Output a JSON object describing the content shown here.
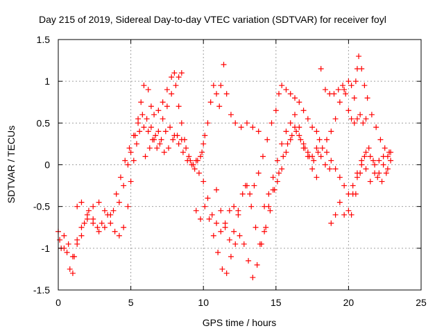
{
  "chart_data": {
    "type": "scatter",
    "title": "Day 215 of 2019, Sidereal Day-to-day VTEC variation (SDTVAR) for receiver foyl",
    "xlabel": "GPS time / hours",
    "ylabel": "SDTVAR / TECUs",
    "xlim": [
      0,
      25
    ],
    "ylim": [
      -1.5,
      1.5
    ],
    "xticks": [
      0,
      5,
      10,
      15,
      20,
      25
    ],
    "xtick_labels": [
      "0",
      "5",
      "10",
      "15",
      "20",
      "25"
    ],
    "yticks": [
      -1.5,
      -1,
      -0.5,
      0,
      0.5,
      1,
      1.5
    ],
    "ytick_labels": [
      "-1.5",
      "-1",
      "-0.5",
      "0",
      "0.5",
      "1",
      "1.5"
    ],
    "grid": true,
    "legend": "none",
    "marker": "plus",
    "color": "#ff0000",
    "series": [
      {
        "points": [
          [
            0.0,
            -0.8
          ],
          [
            0.2,
            -1.0
          ],
          [
            0.4,
            -0.85
          ],
          [
            0.6,
            -1.05
          ],
          [
            0.8,
            -1.25
          ],
          [
            1.0,
            -1.3
          ],
          [
            1.1,
            -1.1
          ],
          [
            1.3,
            -0.95
          ],
          [
            1.6,
            -0.85
          ],
          [
            1.8,
            -0.7
          ],
          [
            2.1,
            -0.55
          ],
          [
            2.4,
            -0.65
          ],
          [
            2.7,
            -0.75
          ],
          [
            3.0,
            -0.7
          ],
          [
            3.4,
            -0.6
          ],
          [
            3.8,
            -0.55
          ],
          [
            4.2,
            -0.45
          ],
          [
            4.5,
            -0.25
          ],
          [
            4.8,
            0.0
          ],
          [
            5.0,
            0.15
          ],
          [
            5.3,
            0.35
          ],
          [
            5.5,
            0.55
          ],
          [
            5.7,
            0.75
          ],
          [
            5.9,
            0.95
          ],
          [
            6.2,
            0.9
          ],
          [
            6.4,
            0.7
          ],
          [
            6.6,
            0.6
          ],
          [
            6.9,
            0.65
          ],
          [
            7.2,
            0.75
          ],
          [
            7.5,
            0.9
          ],
          [
            7.8,
            1.05
          ],
          [
            8.0,
            1.1
          ],
          [
            8.3,
            1.05
          ],
          [
            8.5,
            1.1
          ]
        ]
      },
      {
        "points": [
          [
            0.1,
            -0.9
          ],
          [
            0.4,
            -1.0
          ],
          [
            0.7,
            -0.95
          ],
          [
            1.0,
            -1.1
          ],
          [
            1.3,
            -0.9
          ],
          [
            1.6,
            -0.75
          ],
          [
            2.0,
            -0.65
          ],
          [
            2.4,
            -0.5
          ],
          [
            2.8,
            -0.45
          ],
          [
            3.2,
            -0.55
          ],
          [
            3.6,
            -0.7
          ],
          [
            3.9,
            -0.8
          ],
          [
            4.2,
            -0.85
          ],
          [
            4.5,
            -0.75
          ],
          [
            4.8,
            -0.5
          ],
          [
            5.0,
            -0.2
          ],
          [
            5.2,
            0.05
          ],
          [
            5.4,
            0.25
          ],
          [
            5.6,
            0.4
          ],
          [
            5.9,
            0.45
          ],
          [
            6.2,
            0.4
          ],
          [
            6.5,
            0.3
          ],
          [
            6.8,
            0.2
          ],
          [
            7.1,
            0.3
          ],
          [
            7.4,
            0.4
          ],
          [
            7.7,
            0.45
          ],
          [
            8.0,
            0.35
          ],
          [
            8.3,
            0.25
          ],
          [
            8.6,
            0.15
          ],
          [
            8.9,
            0.05
          ],
          [
            9.2,
            0.0
          ],
          [
            9.5,
            0.05
          ],
          [
            9.8,
            0.1
          ],
          [
            10.0,
            0.25
          ]
        ]
      },
      {
        "points": [
          [
            1.3,
            -0.5
          ],
          [
            1.6,
            -0.45
          ],
          [
            2.0,
            -0.6
          ],
          [
            2.4,
            -0.7
          ],
          [
            2.8,
            -0.8
          ],
          [
            3.2,
            -0.75
          ],
          [
            3.6,
            -0.6
          ],
          [
            4.0,
            -0.35
          ],
          [
            4.3,
            -0.15
          ],
          [
            4.6,
            0.05
          ],
          [
            4.9,
            0.2
          ],
          [
            5.2,
            0.35
          ],
          [
            5.5,
            0.5
          ],
          [
            5.8,
            0.6
          ],
          [
            6.1,
            0.55
          ],
          [
            6.4,
            0.45
          ],
          [
            6.7,
            0.35
          ],
          [
            7.0,
            0.25
          ],
          [
            7.3,
            0.15
          ],
          [
            7.6,
            0.2
          ],
          [
            7.9,
            0.3
          ],
          [
            8.2,
            0.35
          ],
          [
            8.5,
            0.3
          ],
          [
            8.8,
            0.2
          ],
          [
            9.1,
            0.05
          ],
          [
            9.4,
            -0.05
          ],
          [
            9.7,
            -0.1
          ],
          [
            10.0,
            -0.2
          ],
          [
            10.3,
            -0.4
          ],
          [
            10.6,
            -0.6
          ],
          [
            10.9,
            -0.7
          ],
          [
            11.2,
            -0.8
          ],
          [
            11.5,
            -0.7
          ],
          [
            11.8,
            -0.55
          ],
          [
            12.1,
            -0.5
          ],
          [
            12.4,
            -0.6
          ]
        ]
      },
      {
        "points": [
          [
            6.0,
            0.1
          ],
          [
            6.3,
            0.2
          ],
          [
            6.6,
            0.3
          ],
          [
            6.9,
            0.4
          ],
          [
            7.2,
            0.55
          ],
          [
            7.5,
            0.7
          ],
          [
            7.8,
            0.85
          ],
          [
            8.1,
            0.95
          ],
          [
            8.3,
            0.7
          ],
          [
            8.5,
            0.5
          ],
          [
            8.7,
            0.3
          ],
          [
            9.0,
            0.1
          ],
          [
            9.3,
            0.0
          ],
          [
            9.6,
            0.05
          ],
          [
            9.9,
            0.15
          ],
          [
            10.1,
            0.35
          ],
          [
            10.3,
            0.5
          ],
          [
            10.5,
            0.75
          ],
          [
            10.7,
            0.95
          ],
          [
            10.9,
            0.85
          ],
          [
            11.1,
            0.7
          ],
          [
            11.2,
            0.95
          ],
          [
            11.4,
            1.2
          ],
          [
            11.6,
            0.85
          ],
          [
            11.9,
            0.6
          ],
          [
            12.2,
            0.5
          ],
          [
            12.6,
            0.45
          ],
          [
            13.0,
            0.5
          ],
          [
            13.4,
            0.45
          ],
          [
            13.8,
            0.4
          ]
        ]
      },
      {
        "points": [
          [
            9.5,
            -0.55
          ],
          [
            9.8,
            -0.65
          ],
          [
            10.1,
            -0.5
          ],
          [
            10.4,
            -0.65
          ],
          [
            10.7,
            -0.85
          ],
          [
            11.0,
            -1.05
          ],
          [
            11.3,
            -1.25
          ],
          [
            11.6,
            -1.3
          ],
          [
            11.9,
            -1.1
          ],
          [
            12.2,
            -0.95
          ],
          [
            12.5,
            -0.85
          ],
          [
            12.8,
            -0.95
          ],
          [
            13.1,
            -1.15
          ],
          [
            13.4,
            -1.35
          ],
          [
            13.7,
            -1.2
          ],
          [
            14.0,
            -0.95
          ],
          [
            14.3,
            -0.75
          ],
          [
            14.6,
            -0.55
          ],
          [
            14.9,
            -0.3
          ],
          [
            15.2,
            -0.1
          ],
          [
            15.5,
            0.1
          ],
          [
            15.8,
            0.25
          ],
          [
            16.1,
            0.35
          ],
          [
            16.4,
            0.4
          ],
          [
            16.7,
            0.3
          ],
          [
            17.0,
            0.2
          ],
          [
            17.3,
            0.1
          ],
          [
            17.6,
            0.05
          ],
          [
            17.9,
            0.15
          ],
          [
            18.2,
            0.2
          ],
          [
            18.5,
            0.15
          ],
          [
            18.8,
            0.05
          ],
          [
            19.1,
            -0.05
          ],
          [
            19.4,
            -0.15
          ],
          [
            19.7,
            -0.25
          ],
          [
            20.0,
            -0.35
          ],
          [
            20.3,
            -0.25
          ],
          [
            20.6,
            -0.1
          ],
          [
            20.9,
            0.05
          ],
          [
            21.2,
            0.15
          ],
          [
            21.5,
            0.1
          ],
          [
            21.8,
            0.0
          ],
          [
            22.1,
            -0.1
          ],
          [
            22.4,
            0.0
          ],
          [
            22.7,
            0.1
          ]
        ]
      },
      {
        "points": [
          [
            10.9,
            -0.3
          ],
          [
            11.2,
            -0.55
          ],
          [
            11.5,
            -0.75
          ],
          [
            11.8,
            -0.9
          ],
          [
            12.1,
            -0.8
          ],
          [
            12.4,
            -0.55
          ],
          [
            12.7,
            -0.35
          ],
          [
            13.0,
            -0.25
          ],
          [
            13.3,
            -0.5
          ],
          [
            13.6,
            -0.75
          ],
          [
            13.9,
            -0.95
          ],
          [
            14.2,
            -0.8
          ],
          [
            14.5,
            -0.5
          ],
          [
            14.8,
            -0.3
          ],
          [
            15.1,
            -0.2
          ],
          [
            15.4,
            -0.05
          ],
          [
            15.7,
            0.15
          ],
          [
            16.0,
            0.3
          ],
          [
            16.3,
            0.45
          ],
          [
            16.6,
            0.35
          ],
          [
            16.9,
            0.2
          ],
          [
            17.2,
            0.1
          ],
          [
            17.5,
            -0.05
          ],
          [
            17.8,
            -0.15
          ]
        ]
      },
      {
        "points": [
          [
            12.9,
            -0.25
          ],
          [
            13.2,
            -0.35
          ],
          [
            13.5,
            -0.25
          ],
          [
            13.8,
            -0.1
          ],
          [
            14.1,
            0.1
          ],
          [
            14.4,
            0.3
          ],
          [
            14.7,
            0.5
          ],
          [
            15.0,
            0.65
          ],
          [
            15.2,
            0.85
          ],
          [
            15.4,
            0.95
          ],
          [
            15.7,
            0.9
          ],
          [
            16.0,
            0.85
          ],
          [
            16.3,
            0.8
          ],
          [
            16.6,
            0.75
          ],
          [
            16.9,
            0.65
          ],
          [
            17.2,
            0.55
          ],
          [
            17.5,
            0.45
          ],
          [
            17.8,
            0.4
          ],
          [
            18.0,
            0.3
          ]
        ]
      },
      {
        "points": [
          [
            14.2,
            -0.5
          ],
          [
            14.5,
            -0.35
          ],
          [
            14.8,
            -0.15
          ],
          [
            15.1,
            0.05
          ],
          [
            15.4,
            0.25
          ],
          [
            15.7,
            0.4
          ],
          [
            16.0,
            0.5
          ],
          [
            16.3,
            0.6
          ],
          [
            16.6,
            0.45
          ],
          [
            16.9,
            0.25
          ],
          [
            17.2,
            0.15
          ],
          [
            17.5,
            0.1
          ],
          [
            17.8,
            0.2
          ],
          [
            18.1,
            0.1
          ],
          [
            18.4,
            0.0
          ],
          [
            18.7,
            -0.05
          ]
        ]
      },
      {
        "points": [
          [
            18.1,
            1.15
          ],
          [
            18.4,
            0.9
          ],
          [
            18.7,
            0.85
          ],
          [
            19.0,
            0.85
          ],
          [
            19.3,
            0.9
          ],
          [
            19.6,
            0.95
          ],
          [
            19.8,
            0.85
          ],
          [
            20.0,
            0.65
          ],
          [
            20.2,
            0.55
          ],
          [
            20.4,
            0.5
          ],
          [
            20.6,
            0.55
          ],
          [
            20.8,
            0.6
          ],
          [
            21.0,
            0.5
          ],
          [
            21.2,
            0.55
          ]
        ]
      },
      {
        "points": [
          [
            18.5,
            0.3
          ],
          [
            18.8,
            0.4
          ],
          [
            19.1,
            0.55
          ],
          [
            19.4,
            0.75
          ],
          [
            19.7,
            0.9
          ],
          [
            20.0,
            1.0
          ],
          [
            20.2,
            0.95
          ],
          [
            20.4,
            0.8
          ],
          [
            20.5,
            1.0
          ],
          [
            20.6,
            1.15
          ],
          [
            20.7,
            1.3
          ],
          [
            20.9,
            1.15
          ],
          [
            21.1,
            0.95
          ],
          [
            21.3,
            0.8
          ],
          [
            21.6,
            0.6
          ],
          [
            21.9,
            0.45
          ],
          [
            22.2,
            0.3
          ],
          [
            22.5,
            0.2
          ],
          [
            22.8,
            0.15
          ]
        ]
      },
      {
        "points": [
          [
            18.8,
            -0.7
          ],
          [
            19.1,
            -0.6
          ],
          [
            19.4,
            -0.45
          ],
          [
            19.7,
            -0.6
          ],
          [
            20.0,
            -0.55
          ],
          [
            20.3,
            -0.35
          ],
          [
            20.6,
            -0.15
          ],
          [
            20.9,
            0.0
          ],
          [
            21.2,
            -0.05
          ],
          [
            21.5,
            -0.2
          ],
          [
            21.8,
            -0.1
          ],
          [
            22.1,
            0.05
          ],
          [
            22.4,
            0.1
          ],
          [
            22.7,
            -0.05
          ],
          [
            22.9,
            0.05
          ]
        ]
      },
      {
        "points": [
          [
            20.2,
            -0.6
          ],
          [
            20.5,
            -0.35
          ],
          [
            20.8,
            -0.1
          ],
          [
            21.1,
            0.1
          ],
          [
            21.4,
            0.2
          ],
          [
            21.7,
            0.05
          ],
          [
            22.0,
            -0.15
          ],
          [
            22.3,
            -0.2
          ],
          [
            22.6,
            -0.1
          ],
          [
            22.9,
            0.15
          ]
        ]
      }
    ]
  }
}
